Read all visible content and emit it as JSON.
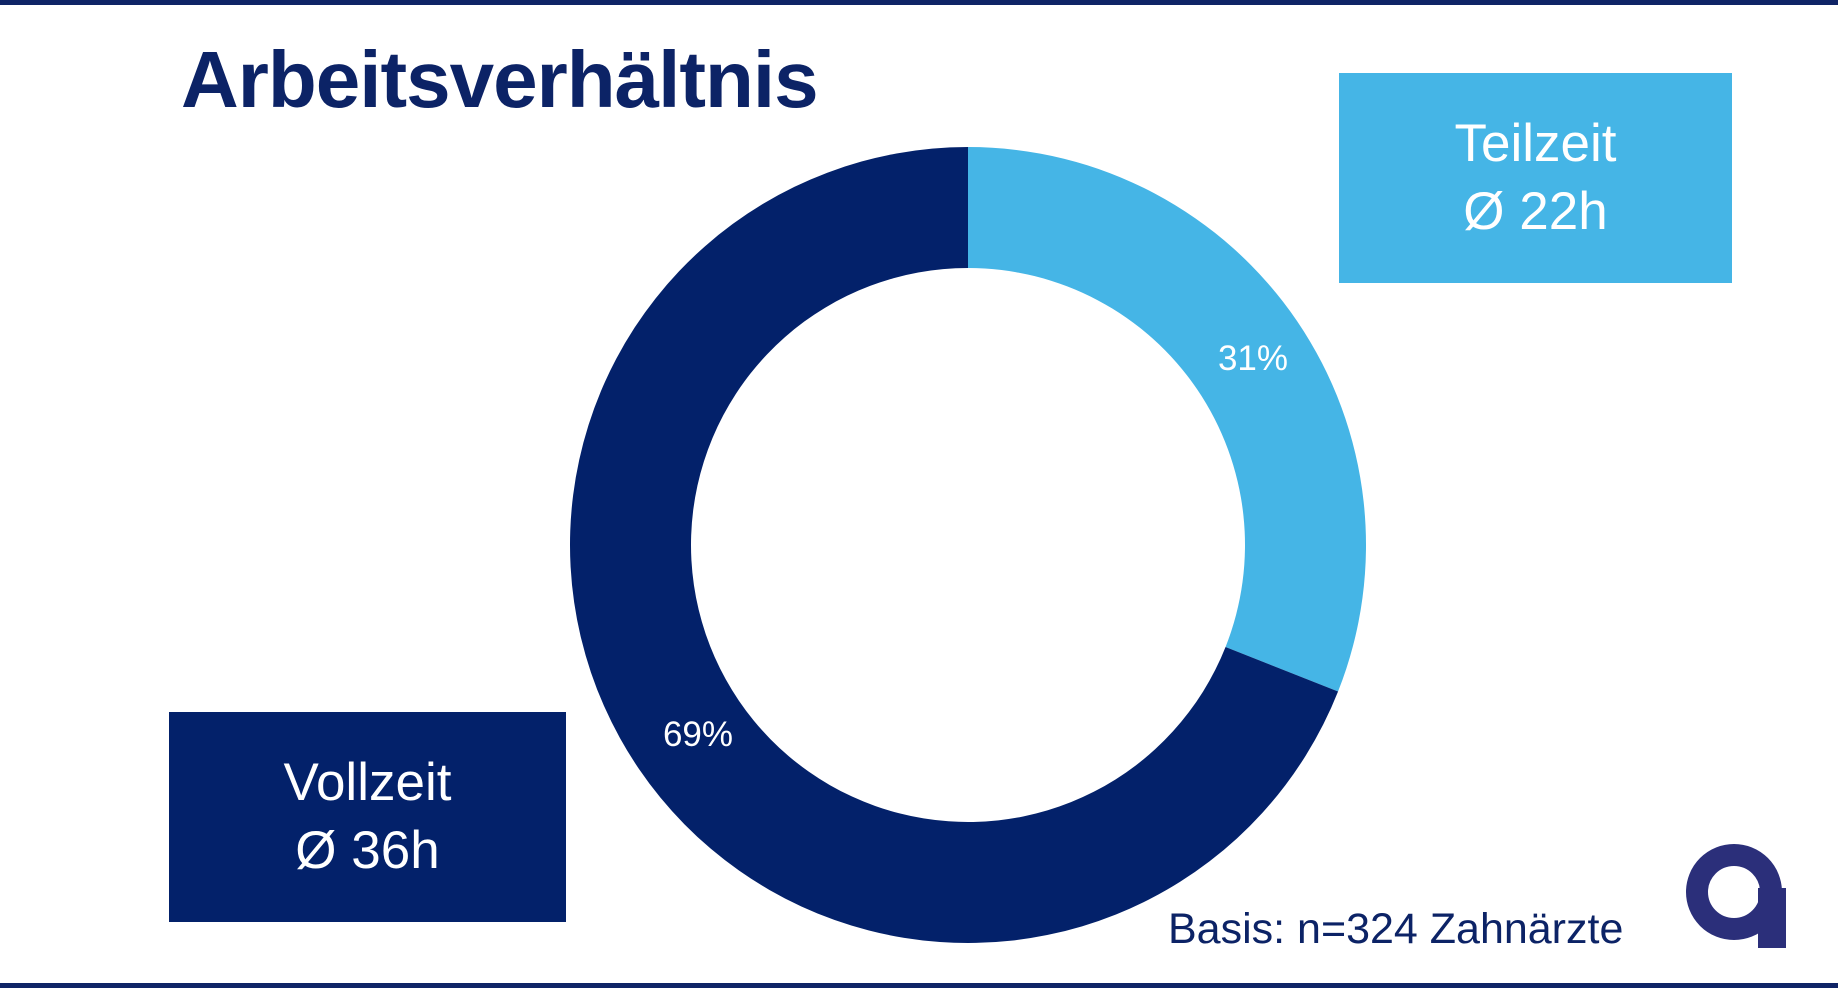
{
  "title": "Arbeitsverhältnis",
  "footnote": "Basis: n=324 Zahnärzte",
  "colors": {
    "dark_navy": "#03216a",
    "light_blue": "#45b5e6",
    "rule": "#0f2466",
    "text_navy": "#0c2366"
  },
  "logo": {
    "icon": "brand-a-logo-icon",
    "color": "#2b2f7a"
  },
  "chart_data": {
    "type": "pie",
    "style": "donut",
    "title": "Arbeitsverhältnis",
    "series": [
      {
        "name": "Teilzeit",
        "value": 31,
        "label": "31%",
        "avg_label": "Ø 22h",
        "color": "#45b5e6"
      },
      {
        "name": "Vollzeit",
        "value": 69,
        "label": "69%",
        "avg_label": "Ø 36h",
        "color": "#03216a"
      }
    ],
    "start": "12 o'clock",
    "direction": "clockwise"
  }
}
